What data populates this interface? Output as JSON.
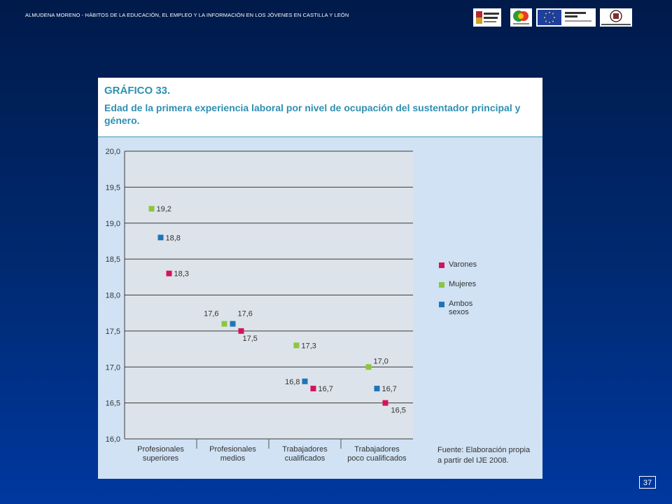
{
  "header": {
    "title": "ALMUDENA MORENO - HÁBITOS DE LA EDUCACIÓN, EL EMPLEO Y LA INFORMACIÓN EN LOS JÓVENES  EN CASTILLA  Y LEÓN",
    "logos": [
      {
        "name": "junta-castilla-leon-logo",
        "text": "Junta de Castilla y León"
      },
      {
        "name": "partner-emblem-logo",
        "text": ""
      },
      {
        "name": "union-europea-feder-logo",
        "text": "Unión Europea FEDER"
      },
      {
        "name": "universidad-valladolid-logo",
        "text": "Universidad de Valladolid"
      }
    ]
  },
  "figure": {
    "number": "GRÁFICO 33.",
    "title": "Edad de la primera experiencia laboral por nivel de ocupación del sustentador principal y género.",
    "source": [
      "Fuente: Elaboración propia",
      "a partir del IJE 2008."
    ]
  },
  "page_number": "37",
  "chart_data": {
    "type": "scatter",
    "categories": [
      [
        "Profesionales",
        "superiores"
      ],
      [
        "Profesionales",
        "medios"
      ],
      [
        "Trabajadores",
        "cualificados"
      ],
      [
        "Trabajadores",
        "poco cualificados"
      ]
    ],
    "ylim": [
      16.0,
      20.0
    ],
    "yticks": [
      16.0,
      16.5,
      17.0,
      17.5,
      18.0,
      18.5,
      19.0,
      19.5,
      20.0
    ],
    "ytick_labels": [
      "16,0",
      "16,5",
      "17,0",
      "17,5",
      "18,0",
      "18,5",
      "19,0",
      "19,5",
      "20,0"
    ],
    "grid": true,
    "legend_position": "right",
    "series": [
      {
        "name": "Varones",
        "color": "#d4145a",
        "values": [
          18.3,
          17.5,
          16.7,
          16.5
        ],
        "labels": [
          "18,3",
          "17,5",
          "16,7",
          "16,5"
        ]
      },
      {
        "name": "Mujeres",
        "color": "#8cc63f",
        "values": [
          19.2,
          17.6,
          17.3,
          17.0
        ],
        "labels": [
          "19,2",
          "17,6",
          "17,3",
          "17,0"
        ]
      },
      {
        "name": "Ambos sexos",
        "color": "#1f75b8",
        "values": [
          18.8,
          17.6,
          16.8,
          16.7
        ],
        "labels": [
          "18,8",
          "17,6",
          "16,8",
          "16,7"
        ]
      }
    ]
  }
}
